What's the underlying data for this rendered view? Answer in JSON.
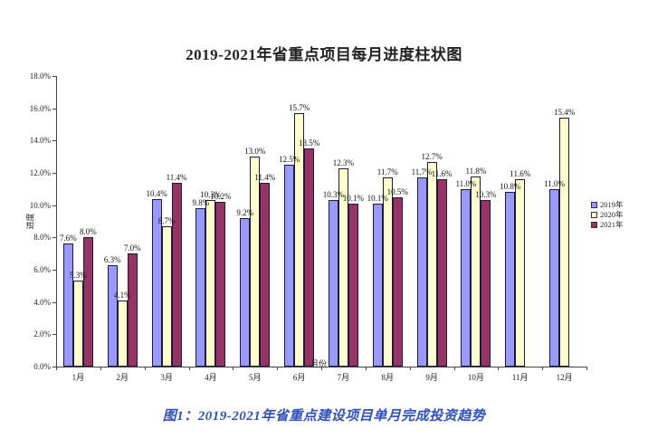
{
  "figure": {
    "caption": "图1：2019-2021年省重点建设项目单月完成投资趋势"
  },
  "chart_data": {
    "type": "bar",
    "title": "2019-2021年省重点项目每月进度柱状图",
    "xlabel": "月份",
    "ylabel": "进度",
    "categories": [
      "1月",
      "2月",
      "3月",
      "4月",
      "5月",
      "6月",
      "7月",
      "8月",
      "9月",
      "10月",
      "11月",
      "12月"
    ],
    "series": [
      {
        "name": "2019年",
        "color": "#9999FF",
        "values": [
          7.6,
          6.3,
          10.4,
          9.8,
          9.2,
          12.5,
          10.3,
          10.1,
          11.7,
          11.0,
          10.8,
          11.0
        ]
      },
      {
        "name": "2020年",
        "color": "#FFFFCC",
        "values": [
          5.3,
          4.1,
          8.7,
          10.3,
          13.0,
          15.7,
          12.3,
          11.7,
          12.7,
          11.8,
          11.6,
          15.4
        ]
      },
      {
        "name": "2021年",
        "color": "#993366",
        "values": [
          8.0,
          7.0,
          11.4,
          10.2,
          11.4,
          13.5,
          10.1,
          10.5,
          11.6,
          10.3,
          null,
          null
        ]
      }
    ],
    "ylim": [
      0,
      18
    ],
    "ytick_step": 2,
    "ytick_suffix": "%",
    "value_label_suffix": "%",
    "grid": false,
    "legend_position": "right",
    "bar_border_color": "#1c1c3a"
  }
}
